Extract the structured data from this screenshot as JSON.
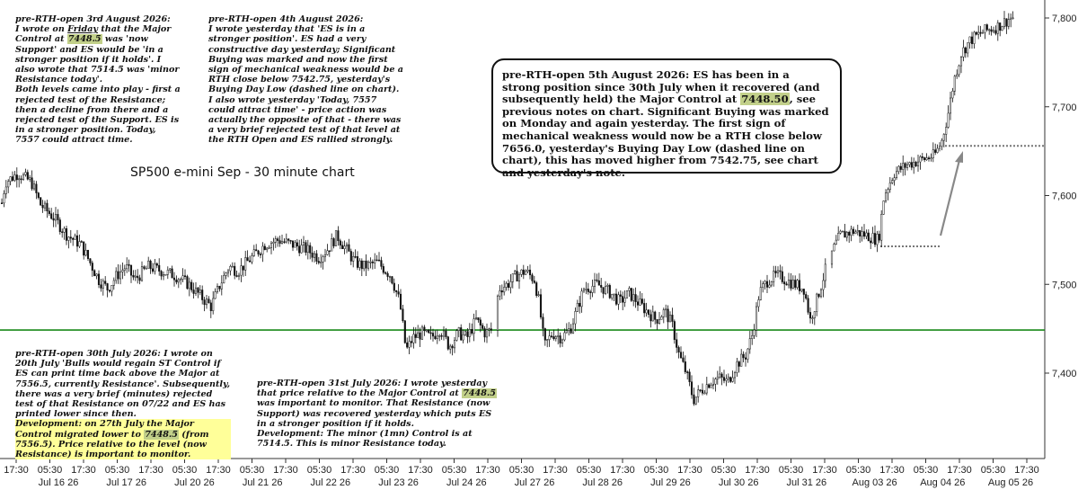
{
  "chart_data": {
    "type": "candlestick",
    "title": "SP500 e-mini  Sep - 30 minute chart",
    "y_ticks": [
      "7,800",
      "7,700",
      "7,600",
      "7,500",
      "7,400"
    ],
    "y_tick_values": [
      7800,
      7700,
      7600,
      7500,
      7400
    ],
    "ylim": [
      7330,
      7815
    ],
    "x_time_labels": [
      "17:30",
      "05:30",
      "17:30",
      "05:30",
      "17:30",
      "05:30",
      "17:30",
      "05:30",
      "17:30",
      "05:30",
      "17:30",
      "05:30",
      "17:30",
      "05:30",
      "17:30",
      "05:30",
      "17:30",
      "05:30",
      "17:30",
      "05:30",
      "17:30",
      "05:30",
      "17:30",
      "05:30",
      "17:30",
      "05:30",
      "17:30",
      "05:30",
      "17:30",
      "05:30",
      "17:30"
    ],
    "x_date_labels": [
      "Jul 16 26",
      "Jul 17 26",
      "Jul 20 26",
      "Jul 21 26",
      "Jul 22 26",
      "Jul 23 26",
      "Jul 24 26",
      "Jul 27 26",
      "Jul 28 26",
      "Jul 29 26",
      "Jul 30 26",
      "Jul 31 26",
      "Aug 03 26",
      "Aug 04 26",
      "Aug 05 26"
    ],
    "major_control_level": 7448.5,
    "buying_day_low_level": 7542.75,
    "rth_close_level": 7656.0,
    "price_path": [
      [
        0,
        7580
      ],
      [
        6,
        7615
      ],
      [
        20,
        7625
      ],
      [
        35,
        7615
      ],
      [
        45,
        7590
      ],
      [
        60,
        7575
      ],
      [
        75,
        7555
      ],
      [
        90,
        7545
      ],
      [
        100,
        7525
      ],
      [
        110,
        7505
      ],
      [
        120,
        7495
      ],
      [
        130,
        7510
      ],
      [
        140,
        7520
      ],
      [
        150,
        7505
      ],
      [
        165,
        7520
      ],
      [
        180,
        7515
      ],
      [
        195,
        7510
      ],
      [
        210,
        7500
      ],
      [
        220,
        7490
      ],
      [
        235,
        7475
      ],
      [
        245,
        7500
      ],
      [
        255,
        7520
      ],
      [
        265,
        7515
      ],
      [
        280,
        7530
      ],
      [
        295,
        7545
      ],
      [
        310,
        7550
      ],
      [
        325,
        7545
      ],
      [
        340,
        7540
      ],
      [
        355,
        7530
      ],
      [
        365,
        7540
      ],
      [
        375,
        7555
      ],
      [
        385,
        7540
      ],
      [
        395,
        7525
      ],
      [
        405,
        7520
      ],
      [
        420,
        7525
      ],
      [
        435,
        7510
      ],
      [
        445,
        7480
      ],
      [
        452,
        7425
      ],
      [
        460,
        7440
      ],
      [
        470,
        7445
      ],
      [
        480,
        7440
      ],
      [
        490,
        7450
      ],
      [
        500,
        7430
      ],
      [
        510,
        7445
      ],
      [
        520,
        7440
      ],
      [
        530,
        7460
      ],
      [
        540,
        7445
      ],
      [
        550,
        7450
      ],
      [
        555,
        7495
      ],
      [
        565,
        7500
      ],
      [
        575,
        7510
      ],
      [
        585,
        7515
      ],
      [
        595,
        7505
      ],
      [
        600,
        7480
      ],
      [
        606,
        7430
      ],
      [
        615,
        7445
      ],
      [
        625,
        7440
      ],
      [
        635,
        7450
      ],
      [
        650,
        7495
      ],
      [
        665,
        7500
      ],
      [
        680,
        7490
      ],
      [
        690,
        7480
      ],
      [
        700,
        7490
      ],
      [
        710,
        7480
      ],
      [
        720,
        7470
      ],
      [
        730,
        7460
      ],
      [
        740,
        7470
      ],
      [
        748,
        7455
      ],
      [
        756,
        7420
      ],
      [
        764,
        7400
      ],
      [
        772,
        7370
      ],
      [
        780,
        7380
      ],
      [
        790,
        7390
      ],
      [
        800,
        7395
      ],
      [
        810,
        7390
      ],
      [
        820,
        7410
      ],
      [
        830,
        7420
      ],
      [
        838,
        7445
      ],
      [
        845,
        7490
      ],
      [
        855,
        7505
      ],
      [
        865,
        7510
      ],
      [
        875,
        7505
      ],
      [
        885,
        7500
      ],
      [
        895,
        7495
      ],
      [
        902,
        7460
      ],
      [
        910,
        7485
      ],
      [
        920,
        7520
      ],
      [
        928,
        7540
      ],
      [
        935,
        7555
      ],
      [
        950,
        7560
      ],
      [
        965,
        7555
      ],
      [
        978,
        7550
      ],
      [
        984,
        7600
      ],
      [
        995,
        7625
      ],
      [
        1010,
        7635
      ],
      [
        1025,
        7640
      ],
      [
        1040,
        7645
      ],
      [
        1048,
        7660
      ],
      [
        1055,
        7690
      ],
      [
        1062,
        7730
      ],
      [
        1070,
        7760
      ],
      [
        1080,
        7775
      ],
      [
        1095,
        7785
      ],
      [
        1110,
        7790
      ],
      [
        1125,
        7800
      ]
    ]
  },
  "notes": {
    "aug3": {
      "header": "pre-RTH-open 3rd August 2026:",
      "p1_a": "I wrote on ",
      "p1_b": "Friday",
      "p1_c": " that the Major Control at ",
      "p1_hl": "7448.5",
      "p1_d": " was 'now Support' and ES would be 'in a stronger position if it holds'. I also wrote that 7514.5 was 'minor Resistance today'.",
      "p2": "Both levels came into play - first a rejected test of the Resistance; then a decline from there and a rejected test of the Support. ES is in a stronger position. Today, 7557 could attract time."
    },
    "aug4": {
      "header": "pre-RTH-open 4th August 2026:",
      "body": "I wrote yesterday that 'ES is in a stronger position'. ES had a very constructive day yesterday; Significant Buying was marked and now the first sign of mechanical weakness would be a RTH close below 7542.75, yesterday's Buying Day Low (dashed line on chart).",
      "p2": "I also wrote yesterday 'Today, 7557 could attract time' - price action was actually the opposite of that - there was a very brief rejected test of that level at the RTH Open and ES rallied strongly."
    },
    "aug5": {
      "header": "pre-RTH-open 5th August 2026:",
      "a": "ES has been in a strong position since 30th July when it recovered (and subsequently held) the Major Control at ",
      "hl": "7448.50",
      "b": ", see previous notes on chart. Significant Buying was marked on Monday and again yesterday. The first sign of mechanical weakness would now be a RTH close below 7656.0, yesterday's Buying Day Low (dashed line on chart), this has moved higher from 7542.75, see chart and yesterday's note."
    },
    "jul30": {
      "header_a": "pre-RTH-open 30th July 2026: I wrote on 20th July 'Bulls would regain ST Control if ES can print time back above the Major at 7556.5, currently Resistance'. Subsequently, there was a very brief (minutes) rejected test of that Resistance on 07/22 and ES has printed lower since then.",
      "dev_a": "Development: on 27th July the Major Control migrated lower to ",
      "dev_hl": "7448.5",
      "dev_b": " (from 7556.5). Price relative to the level (now Resistance) is important to monitor."
    },
    "jul31": {
      "header": "pre-RTH-open 31st July 2026: I wrote yesterday that price relative to the Major Control at ",
      "hl": "7448.5",
      "a": " was important to monitor. That Resistance (now Support) was recovered yesterday which puts ES in a stronger position if it holds.",
      "b": "Development: The minor (1mn) Control is at 7514.5. This is minor Resistance today."
    }
  },
  "colors": {
    "candle": "#111111",
    "major_line": "#1a8a1a",
    "dashed": "#777777",
    "arrow": "#888888",
    "highlight": "#c2d08a",
    "yellow": "#ffff99"
  }
}
